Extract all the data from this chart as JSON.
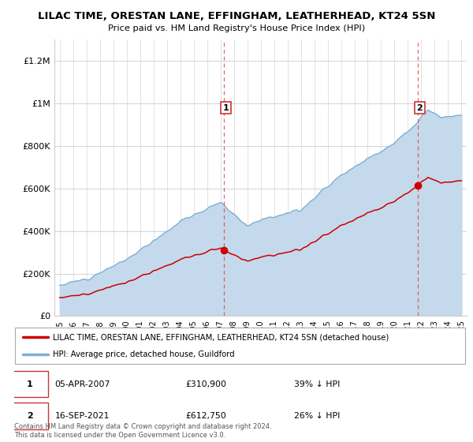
{
  "title": "LILAC TIME, ORESTAN LANE, EFFINGHAM, LEATHERHEAD, KT24 5SN",
  "subtitle": "Price paid vs. HM Land Registry's House Price Index (HPI)",
  "ylabel_ticks": [
    "£0",
    "£200K",
    "£400K",
    "£600K",
    "£800K",
    "£1M",
    "£1.2M"
  ],
  "ytick_values": [
    0,
    200000,
    400000,
    600000,
    800000,
    1000000,
    1200000
  ],
  "ylim": [
    0,
    1300000
  ],
  "xlim_start": 1994.6,
  "xlim_end": 2025.4,
  "legend_line1": "LILAC TIME, ORESTAN LANE, EFFINGHAM, LEATHERHEAD, KT24 5SN (detached house)",
  "legend_line2": "HPI: Average price, detached house, Guildford",
  "line_color_red": "#cc0000",
  "line_color_blue": "#7bafd4",
  "fill_color_blue": "#c5d9ec",
  "point1_x": 2007.27,
  "point1_y": 310900,
  "point2_x": 2021.72,
  "point2_y": 612750,
  "grid_color": "#cccccc",
  "sale1_year": 2007.27,
  "sale1_price": 310900,
  "sale2_year": 2021.72,
  "sale2_price": 612750,
  "copyright": "Contains HM Land Registry data © Crown copyright and database right 2024.\nThis data is licensed under the Open Government Licence v3.0."
}
